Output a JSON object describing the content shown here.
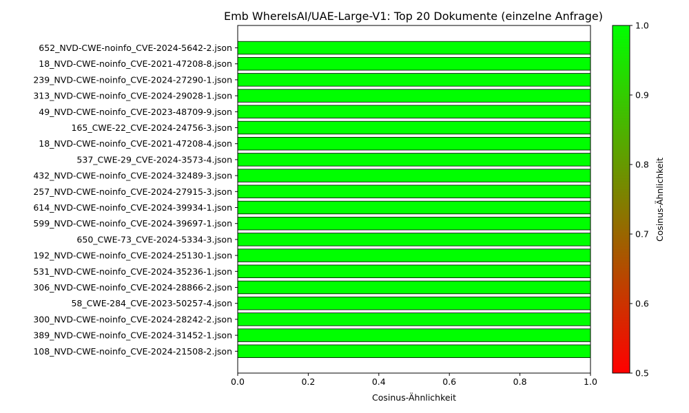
{
  "chart_data": {
    "type": "bar",
    "orientation": "horizontal",
    "title": "Emb WhereIsAI/UAE-Large-V1: Top 20 Dokumente (einzelne Anfrage)",
    "xlabel": "Cosinus-Ähnlichkeit",
    "ylabel": "",
    "xlim": [
      0.0,
      1.0
    ],
    "xticks": [
      "0.0",
      "0.2",
      "0.4",
      "0.6",
      "0.8",
      "1.0"
    ],
    "grid": false,
    "categories": [
      "652_NVD-CWE-noinfo_CVE-2024-5642-2.json",
      "18_NVD-CWE-noinfo_CVE-2021-47208-8.json",
      "239_NVD-CWE-noinfo_CVE-2024-27290-1.json",
      "313_NVD-CWE-noinfo_CVE-2024-29028-1.json",
      "49_NVD-CWE-noinfo_CVE-2023-48709-9.json",
      "165_CWE-22_CVE-2024-24756-3.json",
      "18_NVD-CWE-noinfo_CVE-2021-47208-4.json",
      "537_CWE-29_CVE-2024-3573-4.json",
      "432_NVD-CWE-noinfo_CVE-2024-32489-3.json",
      "257_NVD-CWE-noinfo_CVE-2024-27915-3.json",
      "614_NVD-CWE-noinfo_CVE-2024-39934-1.json",
      "599_NVD-CWE-noinfo_CVE-2024-39697-1.json",
      "650_CWE-73_CVE-2024-5334-3.json",
      "192_NVD-CWE-noinfo_CVE-2024-25130-1.json",
      "531_NVD-CWE-noinfo_CVE-2024-35236-1.json",
      "306_NVD-CWE-noinfo_CVE-2024-28866-2.json",
      "58_CWE-284_CVE-2023-50257-4.json",
      "300_NVD-CWE-noinfo_CVE-2024-28242-2.json",
      "389_NVD-CWE-noinfo_CVE-2024-31452-1.json",
      "108_NVD-CWE-noinfo_CVE-2024-21508-2.json"
    ],
    "values": [
      1.0,
      1.0,
      1.0,
      1.0,
      1.0,
      1.0,
      1.0,
      1.0,
      1.0,
      1.0,
      1.0,
      1.0,
      1.0,
      1.0,
      1.0,
      1.0,
      1.0,
      1.0,
      1.0,
      1.0
    ],
    "colorbar": {
      "label": "Cosinus-Ähnlichkeit",
      "range": [
        0.5,
        1.0
      ],
      "ticks": [
        "0.5",
        "0.6",
        "0.7",
        "0.8",
        "0.9",
        "1.0"
      ],
      "color_low": "#ff0000",
      "color_high": "#00ff00"
    },
    "bar_edge_color": "#000000"
  }
}
